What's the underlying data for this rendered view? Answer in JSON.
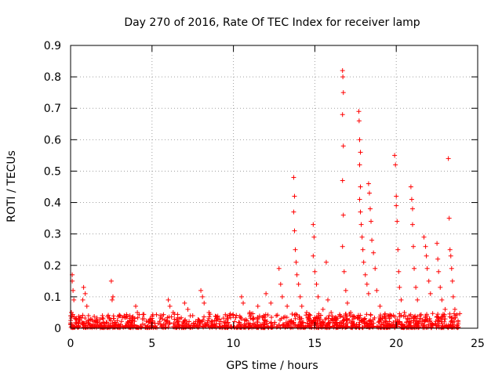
{
  "chart_data": {
    "type": "scatter",
    "title": "Day 270 of 2016, Rate Of TEC Index for receiver lamp",
    "xlabel": "GPS time / hours",
    "ylabel": "ROTI / TECUs",
    "xlim": [
      0,
      25
    ],
    "ylim": [
      0,
      0.9
    ],
    "x_ticks": [
      "0",
      "5",
      "10",
      "15",
      "20",
      "25"
    ],
    "y_ticks": [
      "0",
      "0.1",
      "0.2",
      "0.3",
      "0.4",
      "0.5",
      "0.6",
      "0.7",
      "0.8",
      "0.9"
    ],
    "x_tick_values": [
      0,
      5,
      10,
      15,
      20,
      25
    ],
    "y_tick_values": [
      0,
      0.1,
      0.2,
      0.3,
      0.4,
      0.5,
      0.6,
      0.7,
      0.8,
      0.9
    ],
    "grid": true,
    "marker": "+",
    "color": "#ff0000",
    "series": [
      {
        "name": "ROTI",
        "points": [
          [
            0.1,
            0.17
          ],
          [
            0.1,
            0.15
          ],
          [
            0.15,
            0.12
          ],
          [
            0.2,
            0.09
          ],
          [
            0.05,
            0.05
          ],
          [
            0.3,
            0.03
          ],
          [
            0.5,
            0.02
          ],
          [
            0.8,
            0.13
          ],
          [
            0.9,
            0.11
          ],
          [
            0.75,
            0.09
          ],
          [
            1.0,
            0.07
          ],
          [
            1.1,
            0.04
          ],
          [
            1.5,
            0.02
          ],
          [
            2.0,
            0.03
          ],
          [
            2.5,
            0.15
          ],
          [
            2.6,
            0.1
          ],
          [
            2.55,
            0.09
          ],
          [
            3.0,
            0.04
          ],
          [
            3.5,
            0.02
          ],
          [
            4.0,
            0.07
          ],
          [
            4.1,
            0.05
          ],
          [
            4.5,
            0.03
          ],
          [
            5.0,
            0.02
          ],
          [
            5.5,
            0.04
          ],
          [
            6.0,
            0.09
          ],
          [
            6.1,
            0.07
          ],
          [
            6.3,
            0.05
          ],
          [
            6.7,
            0.03
          ],
          [
            7.0,
            0.08
          ],
          [
            7.2,
            0.06
          ],
          [
            7.5,
            0.04
          ],
          [
            8.0,
            0.12
          ],
          [
            8.1,
            0.1
          ],
          [
            8.2,
            0.08
          ],
          [
            8.5,
            0.05
          ],
          [
            9.0,
            0.03
          ],
          [
            9.5,
            0.02
          ],
          [
            10.0,
            0.04
          ],
          [
            10.5,
            0.1
          ],
          [
            10.6,
            0.08
          ],
          [
            11.0,
            0.05
          ],
          [
            11.5,
            0.07
          ],
          [
            12.0,
            0.11
          ],
          [
            12.3,
            0.08
          ],
          [
            12.8,
            0.19
          ],
          [
            12.9,
            0.14
          ],
          [
            13.0,
            0.1
          ],
          [
            13.3,
            0.07
          ],
          [
            13.7,
            0.48
          ],
          [
            13.75,
            0.42
          ],
          [
            13.7,
            0.37
          ],
          [
            13.75,
            0.31
          ],
          [
            13.8,
            0.25
          ],
          [
            13.85,
            0.21
          ],
          [
            13.9,
            0.17
          ],
          [
            14.0,
            0.14
          ],
          [
            14.1,
            0.1
          ],
          [
            14.2,
            0.07
          ],
          [
            14.5,
            0.05
          ],
          [
            14.9,
            0.33
          ],
          [
            14.95,
            0.29
          ],
          [
            14.9,
            0.23
          ],
          [
            15.0,
            0.18
          ],
          [
            15.1,
            0.14
          ],
          [
            15.2,
            0.1
          ],
          [
            15.5,
            0.06
          ],
          [
            15.7,
            0.21
          ],
          [
            15.8,
            0.09
          ],
          [
            16.0,
            0.05
          ],
          [
            16.3,
            0.03
          ],
          [
            16.7,
            0.82
          ],
          [
            16.72,
            0.8
          ],
          [
            16.75,
            0.75
          ],
          [
            16.7,
            0.68
          ],
          [
            16.75,
            0.58
          ],
          [
            16.7,
            0.47
          ],
          [
            16.75,
            0.36
          ],
          [
            16.7,
            0.26
          ],
          [
            16.8,
            0.18
          ],
          [
            16.9,
            0.12
          ],
          [
            17.0,
            0.08
          ],
          [
            17.2,
            0.05
          ],
          [
            17.7,
            0.69
          ],
          [
            17.72,
            0.66
          ],
          [
            17.75,
            0.6
          ],
          [
            17.8,
            0.56
          ],
          [
            17.75,
            0.52
          ],
          [
            17.8,
            0.45
          ],
          [
            17.75,
            0.41
          ],
          [
            17.8,
            0.37
          ],
          [
            17.85,
            0.33
          ],
          [
            17.9,
            0.29
          ],
          [
            17.95,
            0.25
          ],
          [
            18.0,
            0.21
          ],
          [
            18.1,
            0.17
          ],
          [
            18.2,
            0.14
          ],
          [
            18.3,
            0.11
          ],
          [
            18.3,
            0.46
          ],
          [
            18.35,
            0.43
          ],
          [
            18.4,
            0.38
          ],
          [
            18.45,
            0.34
          ],
          [
            18.5,
            0.28
          ],
          [
            18.6,
            0.24
          ],
          [
            18.7,
            0.19
          ],
          [
            18.8,
            0.12
          ],
          [
            19.0,
            0.07
          ],
          [
            19.5,
            0.04
          ],
          [
            19.9,
            0.55
          ],
          [
            19.95,
            0.52
          ],
          [
            20.0,
            0.42
          ],
          [
            20.0,
            0.39
          ],
          [
            20.05,
            0.34
          ],
          [
            20.1,
            0.25
          ],
          [
            20.15,
            0.18
          ],
          [
            20.2,
            0.13
          ],
          [
            20.3,
            0.09
          ],
          [
            20.5,
            0.05
          ],
          [
            20.9,
            0.45
          ],
          [
            20.95,
            0.41
          ],
          [
            21.0,
            0.38
          ],
          [
            21.0,
            0.33
          ],
          [
            21.05,
            0.26
          ],
          [
            21.1,
            0.19
          ],
          [
            21.2,
            0.13
          ],
          [
            21.3,
            0.09
          ],
          [
            21.7,
            0.29
          ],
          [
            21.8,
            0.26
          ],
          [
            21.85,
            0.23
          ],
          [
            21.9,
            0.19
          ],
          [
            22.0,
            0.15
          ],
          [
            22.1,
            0.11
          ],
          [
            22.5,
            0.27
          ],
          [
            22.55,
            0.22
          ],
          [
            22.6,
            0.18
          ],
          [
            22.7,
            0.13
          ],
          [
            22.8,
            0.09
          ],
          [
            23.0,
            0.06
          ],
          [
            23.2,
            0.54
          ],
          [
            23.25,
            0.35
          ],
          [
            23.3,
            0.25
          ],
          [
            23.35,
            0.23
          ],
          [
            23.4,
            0.19
          ],
          [
            23.45,
            0.15
          ],
          [
            23.5,
            0.1
          ],
          [
            23.6,
            0.06
          ],
          [
            23.8,
            0.02
          ]
        ]
      }
    ]
  }
}
